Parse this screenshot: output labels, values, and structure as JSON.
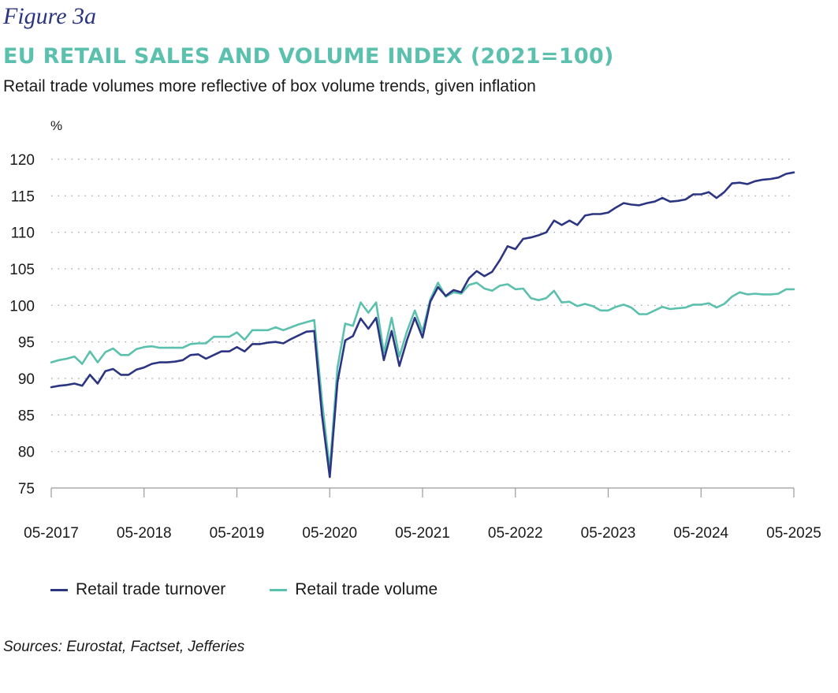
{
  "figure_label": "Figure 3a",
  "chart_data": {
    "type": "line",
    "title": "EU RETAIL SALES AND VOLUME INDEX (2021=100)",
    "subtitle": "Retail trade volumes more reflective of box volume trends, given inflation",
    "ylabel": "%",
    "ylim": [
      75,
      120
    ],
    "yticks": [
      75,
      80,
      85,
      90,
      95,
      100,
      105,
      110,
      115,
      120
    ],
    "xlim": [
      0,
      96
    ],
    "xticks": [
      {
        "x": 0,
        "label": "05-2017"
      },
      {
        "x": 12,
        "label": "05-2018"
      },
      {
        "x": 24,
        "label": "05-2019"
      },
      {
        "x": 36,
        "label": "05-2020"
      },
      {
        "x": 48,
        "label": "05-2021"
      },
      {
        "x": 60,
        "label": "05-2022"
      },
      {
        "x": 72,
        "label": "05-2023"
      },
      {
        "x": 84,
        "label": "05-2024"
      },
      {
        "x": 96,
        "label": "05-2025"
      }
    ],
    "grid": "horizontal dotted",
    "legend_position": "bottom",
    "series": [
      {
        "name": "Retail trade turnover",
        "color": "#2b3582",
        "values": [
          88.8,
          89.0,
          89.1,
          89.3,
          89.0,
          90.5,
          89.3,
          91.0,
          91.3,
          90.5,
          90.5,
          91.2,
          91.5,
          92.0,
          92.2,
          92.2,
          92.3,
          92.5,
          93.2,
          93.3,
          92.7,
          93.2,
          93.7,
          93.7,
          94.3,
          93.7,
          94.7,
          94.7,
          94.9,
          95.0,
          94.8,
          95.4,
          95.9,
          96.4,
          96.5,
          85.0,
          76.5,
          89.5,
          95.2,
          95.8,
          98.2,
          96.8,
          98.3,
          92.5,
          96.5,
          91.7,
          95.3,
          98.3,
          95.6,
          100.5,
          102.5,
          101.3,
          102.1,
          101.8,
          103.7,
          104.7,
          104.0,
          104.6,
          106.2,
          108.1,
          107.7,
          109.1,
          109.3,
          109.6,
          110.0,
          111.6,
          111.0,
          111.6,
          111.0,
          112.3,
          112.5,
          112.5,
          112.7,
          113.4,
          114.0,
          113.8,
          113.7,
          114.0,
          114.2,
          114.7,
          114.2,
          114.3,
          114.5,
          115.2,
          115.2,
          115.5,
          114.7,
          115.5,
          116.7,
          116.8,
          116.6,
          117.0,
          117.2,
          117.3,
          117.5,
          118.0,
          118.2
        ]
      },
      {
        "name": "Retail trade volume",
        "color": "#5bc0ad",
        "values": [
          92.2,
          92.5,
          92.7,
          93.0,
          92.0,
          93.7,
          92.2,
          93.6,
          94.1,
          93.2,
          93.2,
          94.0,
          94.3,
          94.4,
          94.2,
          94.2,
          94.2,
          94.2,
          94.7,
          94.8,
          94.8,
          95.7,
          95.7,
          95.7,
          96.3,
          95.3,
          96.6,
          96.6,
          96.6,
          97.0,
          96.6,
          97.0,
          97.4,
          97.7,
          98.0,
          87.0,
          77.5,
          91.5,
          97.5,
          97.2,
          100.4,
          99.0,
          100.4,
          93.5,
          98.3,
          93.0,
          96.5,
          99.3,
          96.4,
          100.8,
          103.1,
          101.2,
          101.8,
          101.6,
          102.8,
          103.1,
          102.3,
          102.0,
          102.7,
          102.9,
          102.2,
          102.3,
          101.0,
          100.7,
          101.0,
          102.0,
          100.4,
          100.5,
          99.9,
          100.2,
          99.9,
          99.3,
          99.3,
          99.8,
          100.1,
          99.7,
          98.8,
          98.8,
          99.3,
          99.8,
          99.5,
          99.6,
          99.7,
          100.1,
          100.1,
          100.3,
          99.7,
          100.2,
          101.2,
          101.8,
          101.5,
          101.6,
          101.5,
          101.5,
          101.6,
          102.2,
          102.2
        ]
      }
    ]
  },
  "source": "Sources: Eurostat, Factset, Jefferies"
}
